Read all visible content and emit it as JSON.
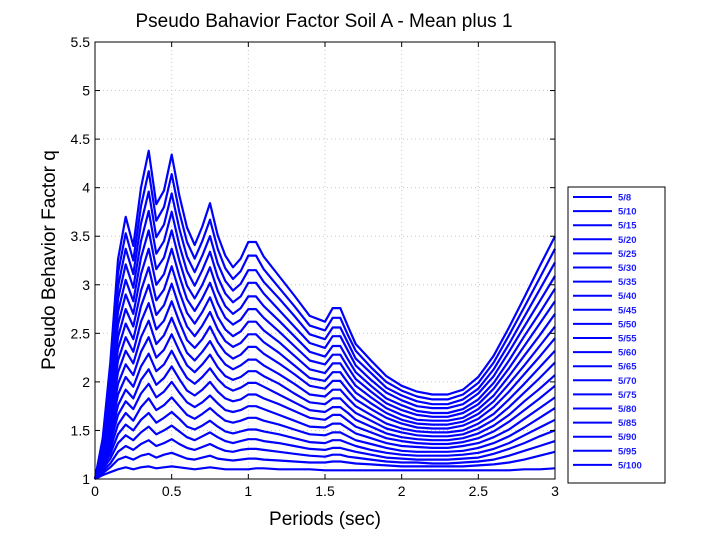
{
  "chart_data": {
    "type": "line",
    "title": "Pseudo Bahavior Factor Soil A - Mean plus 1",
    "xlabel": "Periods (sec)",
    "ylabel": "Pseudo Behavior Factor q",
    "xlim": [
      0,
      3
    ],
    "ylim": [
      1,
      5.5
    ],
    "xticks": [
      0,
      0.5,
      1,
      1.5,
      2,
      2.5,
      3
    ],
    "xtick_labels": [
      "0",
      "0.5",
      "1",
      "1.5",
      "2",
      "2.5",
      "3"
    ],
    "yticks": [
      1,
      1.5,
      2,
      2.5,
      3,
      3.5,
      4,
      4.5,
      5,
      5.5
    ],
    "ytick_labels": [
      "1",
      "1.5",
      "2",
      "2.5",
      "3",
      "3.5",
      "4",
      "4.5",
      "5",
      "5.5"
    ],
    "grid": true,
    "legend_position": "outside-right",
    "line_color": "#0000ff",
    "x": [
      0,
      0.05,
      0.1,
      0.15,
      0.2,
      0.25,
      0.3,
      0.35,
      0.4,
      0.45,
      0.5,
      0.55,
      0.6,
      0.65,
      0.7,
      0.75,
      0.8,
      0.85,
      0.9,
      0.95,
      1.0,
      1.05,
      1.1,
      1.2,
      1.3,
      1.4,
      1.5,
      1.55,
      1.6,
      1.65,
      1.7,
      1.8,
      1.9,
      2.0,
      2.1,
      2.2,
      2.3,
      2.4,
      2.5,
      2.6,
      2.7,
      2.8,
      2.9,
      3.0
    ],
    "series": [
      {
        "name": "5/8",
        "values": [
          1,
          1.04,
          1.07,
          1.1,
          1.12,
          1.1,
          1.12,
          1.13,
          1.11,
          1.12,
          1.13,
          1.12,
          1.11,
          1.1,
          1.11,
          1.12,
          1.11,
          1.1,
          1.1,
          1.1,
          1.1,
          1.11,
          1.11,
          1.1,
          1.1,
          1.1,
          1.09,
          1.09,
          1.09,
          1.09,
          1.09,
          1.09,
          1.09,
          1.09,
          1.09,
          1.09,
          1.09,
          1.09,
          1.09,
          1.09,
          1.09,
          1.1,
          1.1,
          1.11
        ]
      },
      {
        "name": "5/10",
        "values": [
          1,
          1.06,
          1.12,
          1.2,
          1.23,
          1.2,
          1.24,
          1.26,
          1.22,
          1.25,
          1.27,
          1.24,
          1.21,
          1.2,
          1.22,
          1.24,
          1.21,
          1.2,
          1.19,
          1.2,
          1.21,
          1.21,
          1.2,
          1.19,
          1.18,
          1.17,
          1.17,
          1.18,
          1.18,
          1.17,
          1.16,
          1.15,
          1.14,
          1.13,
          1.13,
          1.13,
          1.13,
          1.13,
          1.14,
          1.15,
          1.17,
          1.2,
          1.24,
          1.28
        ]
      },
      {
        "name": "5/15",
        "values": [
          1,
          1.08,
          1.16,
          1.28,
          1.34,
          1.3,
          1.36,
          1.4,
          1.34,
          1.37,
          1.41,
          1.36,
          1.32,
          1.3,
          1.33,
          1.36,
          1.32,
          1.29,
          1.28,
          1.3,
          1.31,
          1.31,
          1.3,
          1.28,
          1.26,
          1.24,
          1.23,
          1.25,
          1.25,
          1.23,
          1.22,
          1.2,
          1.18,
          1.17,
          1.17,
          1.16,
          1.16,
          1.17,
          1.18,
          1.2,
          1.24,
          1.29,
          1.34,
          1.39
        ]
      },
      {
        "name": "5/20",
        "values": [
          1,
          1.1,
          1.21,
          1.37,
          1.45,
          1.4,
          1.48,
          1.54,
          1.46,
          1.5,
          1.55,
          1.49,
          1.43,
          1.4,
          1.44,
          1.48,
          1.43,
          1.39,
          1.37,
          1.39,
          1.41,
          1.41,
          1.39,
          1.37,
          1.34,
          1.31,
          1.3,
          1.32,
          1.32,
          1.3,
          1.28,
          1.25,
          1.22,
          1.21,
          1.2,
          1.2,
          1.2,
          1.21,
          1.22,
          1.26,
          1.31,
          1.37,
          1.44,
          1.5
        ]
      },
      {
        "name": "5/25",
        "values": [
          1,
          1.12,
          1.26,
          1.46,
          1.56,
          1.5,
          1.61,
          1.68,
          1.58,
          1.63,
          1.69,
          1.62,
          1.54,
          1.51,
          1.55,
          1.6,
          1.54,
          1.49,
          1.47,
          1.49,
          1.51,
          1.51,
          1.49,
          1.46,
          1.42,
          1.38,
          1.37,
          1.4,
          1.4,
          1.37,
          1.34,
          1.3,
          1.27,
          1.25,
          1.24,
          1.24,
          1.24,
          1.25,
          1.27,
          1.31,
          1.37,
          1.45,
          1.53,
          1.61
        ]
      },
      {
        "name": "5/30",
        "values": [
          1,
          1.14,
          1.31,
          1.56,
          1.68,
          1.6,
          1.74,
          1.83,
          1.71,
          1.76,
          1.84,
          1.75,
          1.66,
          1.62,
          1.67,
          1.73,
          1.66,
          1.6,
          1.58,
          1.6,
          1.63,
          1.63,
          1.6,
          1.56,
          1.51,
          1.46,
          1.45,
          1.48,
          1.48,
          1.44,
          1.4,
          1.36,
          1.32,
          1.29,
          1.28,
          1.28,
          1.28,
          1.29,
          1.32,
          1.37,
          1.44,
          1.53,
          1.63,
          1.73
        ]
      },
      {
        "name": "5/35",
        "values": [
          1,
          1.16,
          1.37,
          1.66,
          1.8,
          1.72,
          1.88,
          1.98,
          1.84,
          1.9,
          2.0,
          1.89,
          1.79,
          1.74,
          1.79,
          1.86,
          1.78,
          1.71,
          1.69,
          1.71,
          1.75,
          1.75,
          1.72,
          1.66,
          1.6,
          1.54,
          1.53,
          1.57,
          1.57,
          1.52,
          1.47,
          1.42,
          1.37,
          1.34,
          1.33,
          1.32,
          1.32,
          1.34,
          1.37,
          1.43,
          1.51,
          1.62,
          1.73,
          1.84
        ]
      },
      {
        "name": "5/40",
        "values": [
          1,
          1.18,
          1.42,
          1.76,
          1.92,
          1.83,
          2.02,
          2.13,
          1.97,
          2.04,
          2.16,
          2.03,
          1.91,
          1.86,
          1.92,
          2.0,
          1.9,
          1.83,
          1.8,
          1.82,
          1.87,
          1.87,
          1.83,
          1.77,
          1.7,
          1.63,
          1.61,
          1.66,
          1.66,
          1.6,
          1.54,
          1.48,
          1.42,
          1.39,
          1.37,
          1.36,
          1.36,
          1.38,
          1.42,
          1.49,
          1.59,
          1.71,
          1.83,
          1.96
        ]
      },
      {
        "name": "5/45",
        "values": [
          1,
          1.2,
          1.48,
          1.87,
          2.05,
          1.95,
          2.16,
          2.29,
          2.11,
          2.18,
          2.32,
          2.17,
          2.04,
          1.98,
          2.05,
          2.14,
          2.03,
          1.95,
          1.91,
          1.94,
          1.99,
          1.99,
          1.95,
          1.87,
          1.79,
          1.71,
          1.69,
          1.74,
          1.74,
          1.68,
          1.61,
          1.54,
          1.47,
          1.43,
          1.41,
          1.4,
          1.4,
          1.42,
          1.47,
          1.55,
          1.66,
          1.8,
          1.93,
          2.07
        ]
      },
      {
        "name": "5/50",
        "values": [
          1,
          1.22,
          1.54,
          1.98,
          2.18,
          2.07,
          2.31,
          2.46,
          2.25,
          2.33,
          2.49,
          2.32,
          2.17,
          2.1,
          2.18,
          2.28,
          2.15,
          2.06,
          2.02,
          2.05,
          2.11,
          2.11,
          2.06,
          1.98,
          1.88,
          1.79,
          1.77,
          1.83,
          1.83,
          1.75,
          1.68,
          1.6,
          1.52,
          1.48,
          1.45,
          1.44,
          1.44,
          1.46,
          1.52,
          1.61,
          1.74,
          1.89,
          2.04,
          2.2
        ]
      },
      {
        "name": "5/55",
        "values": [
          1,
          1.24,
          1.6,
          2.1,
          2.32,
          2.19,
          2.46,
          2.63,
          2.39,
          2.48,
          2.66,
          2.47,
          2.3,
          2.22,
          2.31,
          2.42,
          2.28,
          2.18,
          2.13,
          2.17,
          2.23,
          2.23,
          2.17,
          2.08,
          1.98,
          1.87,
          1.85,
          1.92,
          1.92,
          1.83,
          1.75,
          1.66,
          1.57,
          1.52,
          1.49,
          1.48,
          1.48,
          1.5,
          1.57,
          1.67,
          1.82,
          1.98,
          2.15,
          2.32
        ]
      },
      {
        "name": "5/60",
        "values": [
          1,
          1.26,
          1.66,
          2.22,
          2.46,
          2.31,
          2.62,
          2.81,
          2.54,
          2.63,
          2.83,
          2.62,
          2.43,
          2.35,
          2.44,
          2.57,
          2.41,
          2.3,
          2.24,
          2.28,
          2.36,
          2.36,
          2.29,
          2.19,
          2.08,
          1.96,
          1.93,
          2.01,
          2.01,
          1.91,
          1.82,
          1.72,
          1.63,
          1.57,
          1.53,
          1.52,
          1.52,
          1.55,
          1.62,
          1.74,
          1.9,
          2.08,
          2.26,
          2.45
        ]
      },
      {
        "name": "5/65",
        "values": [
          1,
          1.28,
          1.72,
          2.34,
          2.6,
          2.44,
          2.78,
          3.0,
          2.69,
          2.79,
          3.01,
          2.77,
          2.57,
          2.47,
          2.58,
          2.72,
          2.54,
          2.42,
          2.36,
          2.4,
          2.49,
          2.49,
          2.41,
          2.3,
          2.17,
          2.04,
          2.01,
          2.1,
          2.1,
          1.99,
          1.89,
          1.78,
          1.68,
          1.61,
          1.57,
          1.56,
          1.56,
          1.59,
          1.67,
          1.8,
          1.98,
          2.17,
          2.37,
          2.57
        ]
      },
      {
        "name": "5/70",
        "values": [
          1,
          1.3,
          1.78,
          2.46,
          2.75,
          2.57,
          2.94,
          3.18,
          2.84,
          2.95,
          3.19,
          2.93,
          2.71,
          2.6,
          2.72,
          2.87,
          2.67,
          2.54,
          2.47,
          2.52,
          2.62,
          2.62,
          2.53,
          2.41,
          2.27,
          2.13,
          2.09,
          2.19,
          2.19,
          2.07,
          1.96,
          1.84,
          1.73,
          1.66,
          1.61,
          1.6,
          1.6,
          1.63,
          1.72,
          1.86,
          2.06,
          2.27,
          2.48,
          2.7
        ]
      },
      {
        "name": "5/75",
        "values": [
          1,
          1.32,
          1.85,
          2.59,
          2.9,
          2.7,
          3.11,
          3.37,
          3.0,
          3.11,
          3.37,
          3.09,
          2.85,
          2.73,
          2.86,
          3.02,
          2.81,
          2.66,
          2.59,
          2.64,
          2.75,
          2.75,
          2.66,
          2.52,
          2.37,
          2.22,
          2.18,
          2.28,
          2.28,
          2.15,
          2.03,
          1.9,
          1.78,
          1.71,
          1.66,
          1.64,
          1.64,
          1.68,
          1.77,
          1.93,
          2.14,
          2.37,
          2.6,
          2.83
        ]
      },
      {
        "name": "5/80",
        "values": [
          1,
          1.34,
          1.92,
          2.72,
          3.05,
          2.83,
          3.28,
          3.56,
          3.16,
          3.28,
          3.56,
          3.25,
          2.99,
          2.86,
          3.0,
          3.18,
          2.94,
          2.78,
          2.7,
          2.76,
          2.88,
          2.88,
          2.78,
          2.63,
          2.47,
          2.31,
          2.26,
          2.37,
          2.37,
          2.23,
          2.1,
          1.96,
          1.83,
          1.76,
          1.7,
          1.68,
          1.68,
          1.72,
          1.82,
          1.99,
          2.22,
          2.47,
          2.71,
          2.96
        ]
      },
      {
        "name": "5/85",
        "values": [
          1,
          1.36,
          1.99,
          2.85,
          3.21,
          2.97,
          3.45,
          3.76,
          3.32,
          3.45,
          3.75,
          3.41,
          3.14,
          2.99,
          3.15,
          3.34,
          3.08,
          2.91,
          2.82,
          2.88,
          3.02,
          3.02,
          2.91,
          2.74,
          2.57,
          2.4,
          2.35,
          2.47,
          2.47,
          2.32,
          2.17,
          2.02,
          1.89,
          1.81,
          1.75,
          1.73,
          1.73,
          1.77,
          1.88,
          2.06,
          2.31,
          2.57,
          2.83,
          3.09
        ]
      },
      {
        "name": "5/90",
        "values": [
          1,
          1.38,
          2.06,
          2.98,
          3.37,
          3.11,
          3.63,
          3.96,
          3.49,
          3.62,
          3.94,
          3.58,
          3.29,
          3.13,
          3.3,
          3.5,
          3.22,
          3.04,
          2.94,
          3.01,
          3.15,
          3.15,
          3.03,
          2.86,
          2.68,
          2.49,
          2.44,
          2.56,
          2.56,
          2.4,
          2.24,
          2.09,
          1.94,
          1.86,
          1.8,
          1.77,
          1.77,
          1.82,
          1.93,
          2.13,
          2.39,
          2.67,
          2.95,
          3.23
        ]
      },
      {
        "name": "5/95",
        "values": [
          1,
          1.4,
          2.13,
          3.12,
          3.53,
          3.25,
          3.81,
          4.17,
          3.66,
          3.8,
          4.14,
          3.75,
          3.44,
          3.27,
          3.45,
          3.67,
          3.37,
          3.17,
          3.06,
          3.14,
          3.3,
          3.3,
          3.16,
          2.97,
          2.78,
          2.58,
          2.53,
          2.66,
          2.66,
          2.48,
          2.32,
          2.15,
          2.0,
          1.91,
          1.85,
          1.82,
          1.82,
          1.87,
          1.99,
          2.2,
          2.48,
          2.77,
          3.07,
          3.37
        ]
      },
      {
        "name": "5/100",
        "values": [
          1,
          1.42,
          2.2,
          3.26,
          3.7,
          3.4,
          4.0,
          4.38,
          3.83,
          3.97,
          4.34,
          3.92,
          3.59,
          3.41,
          3.6,
          3.84,
          3.51,
          3.3,
          3.18,
          3.27,
          3.44,
          3.44,
          3.29,
          3.09,
          2.89,
          2.68,
          2.62,
          2.76,
          2.76,
          2.57,
          2.39,
          2.22,
          2.06,
          1.96,
          1.9,
          1.87,
          1.87,
          1.92,
          2.05,
          2.27,
          2.56,
          2.87,
          3.19,
          3.5
        ]
      }
    ]
  }
}
